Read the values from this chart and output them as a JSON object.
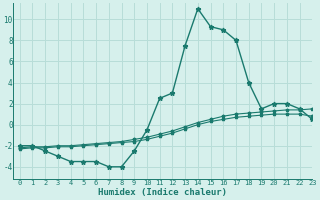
{
  "xlabel": "Humidex (Indice chaleur)",
  "bg_color": "#d6f0ec",
  "grid_color": "#b8ddd8",
  "line_color": "#1a7a6e",
  "xlim": [
    -0.5,
    23
  ],
  "ylim": [
    -5.2,
    11.5
  ],
  "yticks": [
    -4,
    -2,
    0,
    2,
    4,
    6,
    8,
    10
  ],
  "xticks": [
    0,
    1,
    2,
    3,
    4,
    5,
    6,
    7,
    8,
    9,
    10,
    11,
    12,
    13,
    14,
    15,
    16,
    17,
    18,
    19,
    20,
    21,
    22,
    23
  ],
  "x": [
    0,
    1,
    2,
    3,
    4,
    5,
    6,
    7,
    8,
    9,
    10,
    11,
    12,
    13,
    14,
    15,
    16,
    17,
    18,
    19,
    20,
    21,
    22,
    23
  ],
  "y_main": [
    -2.0,
    -2.0,
    -2.5,
    -3.0,
    -3.5,
    -3.5,
    -3.5,
    -4.0,
    -4.0,
    -2.5,
    -0.5,
    2.5,
    3.0,
    7.5,
    11.0,
    9.3,
    9.0,
    8.0,
    4.0,
    1.5,
    2.0,
    2.0,
    1.5,
    0.5
  ],
  "y_line2": [
    -2.2,
    -2.1,
    -2.1,
    -2.0,
    -2.0,
    -1.9,
    -1.8,
    -1.7,
    -1.6,
    -1.4,
    -1.2,
    -0.9,
    -0.6,
    -0.2,
    0.2,
    0.5,
    0.8,
    1.0,
    1.1,
    1.2,
    1.3,
    1.4,
    1.4,
    1.5
  ],
  "y_line3": [
    -2.3,
    -2.2,
    -2.2,
    -2.1,
    -2.1,
    -2.0,
    -1.9,
    -1.8,
    -1.7,
    -1.6,
    -1.4,
    -1.1,
    -0.8,
    -0.4,
    0.0,
    0.3,
    0.5,
    0.7,
    0.8,
    0.9,
    1.0,
    1.0,
    1.0,
    0.8
  ]
}
